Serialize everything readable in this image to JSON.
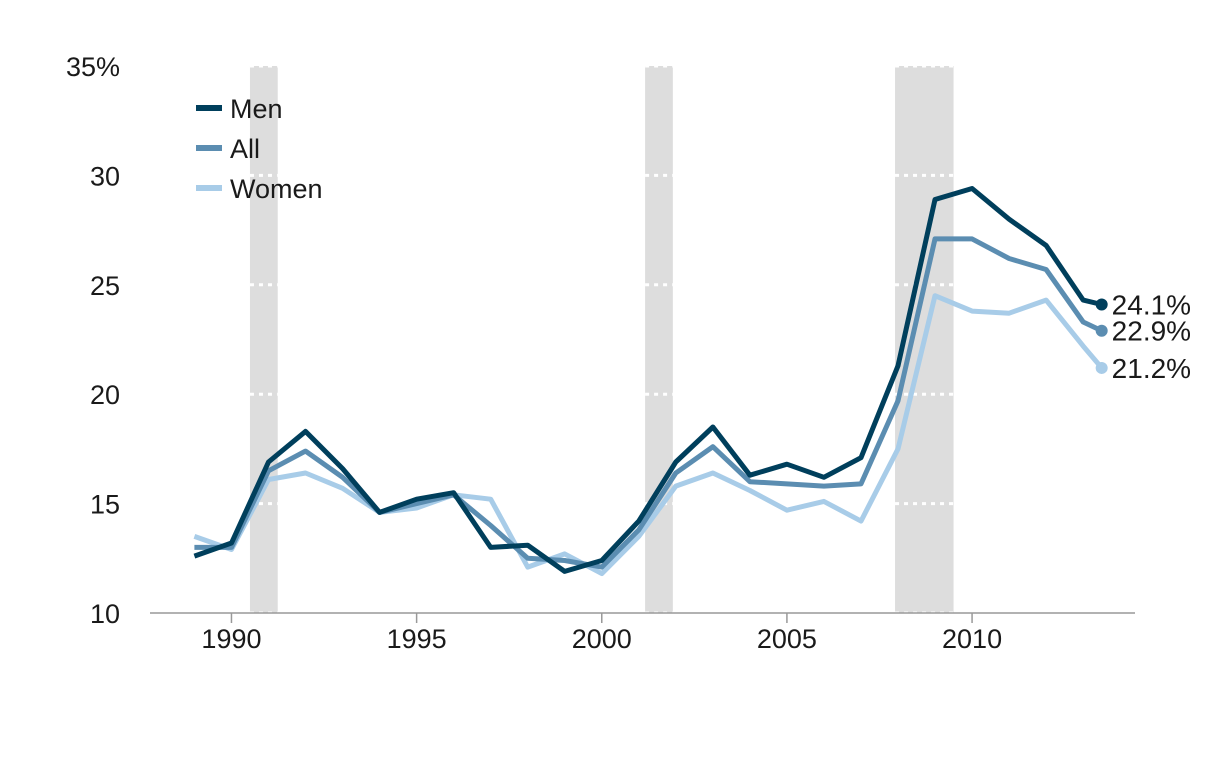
{
  "chart_data": {
    "type": "line",
    "title": "",
    "xlabel": "",
    "ylabel": "",
    "xlim": [
      1987.8,
      2014.4
    ],
    "ylim": [
      10,
      35
    ],
    "x_ticks": [
      {
        "value": 1990,
        "label": "1990"
      },
      {
        "value": 1995,
        "label": "1995"
      },
      {
        "value": 2000,
        "label": "2000"
      },
      {
        "value": 2005,
        "label": "2005"
      },
      {
        "value": 2010,
        "label": "2010"
      }
    ],
    "y_ticks": [
      {
        "value": 10,
        "label": "10"
      },
      {
        "value": 15,
        "label": "15"
      },
      {
        "value": 20,
        "label": "20"
      },
      {
        "value": 25,
        "label": "25"
      },
      {
        "value": 30,
        "label": "30"
      },
      {
        "value": 35,
        "label": "35%"
      }
    ],
    "grid": false,
    "legend_position": "top-left",
    "recessions": [
      {
        "start": 1990.5,
        "end": 1991.25
      },
      {
        "start": 2001.17,
        "end": 2001.92
      },
      {
        "start": 2007.92,
        "end": 2009.5
      }
    ],
    "recession_color": "#dddddd",
    "series": [
      {
        "name": "Men",
        "color": "#003f5c",
        "end_label": "24.1%",
        "points": [
          [
            1989,
            12.6
          ],
          [
            1990,
            13.2
          ],
          [
            1991,
            16.9
          ],
          [
            1992,
            18.3
          ],
          [
            1993,
            16.6
          ],
          [
            1994,
            14.6
          ],
          [
            1995,
            15.2
          ],
          [
            1996,
            15.5
          ],
          [
            1997,
            13.0
          ],
          [
            1998,
            13.1
          ],
          [
            1999,
            11.9
          ],
          [
            2000,
            12.4
          ],
          [
            2001,
            14.2
          ],
          [
            2002,
            16.9
          ],
          [
            2003,
            18.5
          ],
          [
            2004,
            16.3
          ],
          [
            2005,
            16.8
          ],
          [
            2006,
            16.2
          ],
          [
            2007,
            17.1
          ],
          [
            2008,
            21.3
          ],
          [
            2009,
            28.9
          ],
          [
            2010,
            29.4
          ],
          [
            2011,
            28.0
          ],
          [
            2012,
            26.8
          ],
          [
            2013,
            24.3
          ],
          [
            2013.5,
            24.1
          ]
        ]
      },
      {
        "name": "All",
        "color": "#5b8db1",
        "end_label": "22.9%",
        "points": [
          [
            1989,
            13.0
          ],
          [
            1990,
            13.0
          ],
          [
            1991,
            16.5
          ],
          [
            1992,
            17.4
          ],
          [
            1993,
            16.2
          ],
          [
            1994,
            14.6
          ],
          [
            1995,
            15.0
          ],
          [
            1996,
            15.4
          ],
          [
            1997,
            14.0
          ],
          [
            1998,
            12.5
          ],
          [
            1999,
            12.4
          ],
          [
            2000,
            12.1
          ],
          [
            2001,
            13.8
          ],
          [
            2002,
            16.4
          ],
          [
            2003,
            17.6
          ],
          [
            2004,
            16.0
          ],
          [
            2005,
            15.9
          ],
          [
            2006,
            15.8
          ],
          [
            2007,
            15.9
          ],
          [
            2008,
            19.7
          ],
          [
            2009,
            27.1
          ],
          [
            2010,
            27.1
          ],
          [
            2011,
            26.2
          ],
          [
            2012,
            25.7
          ],
          [
            2013,
            23.3
          ],
          [
            2013.5,
            22.9
          ]
        ]
      },
      {
        "name": "Women",
        "color": "#a8cce8",
        "end_label": "21.2%",
        "points": [
          [
            1989,
            13.5
          ],
          [
            1990,
            12.9
          ],
          [
            1991,
            16.1
          ],
          [
            1992,
            16.4
          ],
          [
            1993,
            15.7
          ],
          [
            1994,
            14.6
          ],
          [
            1995,
            14.8
          ],
          [
            1996,
            15.4
          ],
          [
            1997,
            15.2
          ],
          [
            1998,
            12.1
          ],
          [
            1999,
            12.7
          ],
          [
            2000,
            11.8
          ],
          [
            2001,
            13.5
          ],
          [
            2002,
            15.8
          ],
          [
            2003,
            16.4
          ],
          [
            2004,
            15.6
          ],
          [
            2005,
            14.7
          ],
          [
            2006,
            15.1
          ],
          [
            2007,
            14.2
          ],
          [
            2008,
            17.5
          ],
          [
            2009,
            24.5
          ],
          [
            2010,
            23.8
          ],
          [
            2011,
            23.7
          ],
          [
            2012,
            24.3
          ],
          [
            2013,
            22.2
          ],
          [
            2013.5,
            21.2
          ]
        ]
      }
    ]
  }
}
